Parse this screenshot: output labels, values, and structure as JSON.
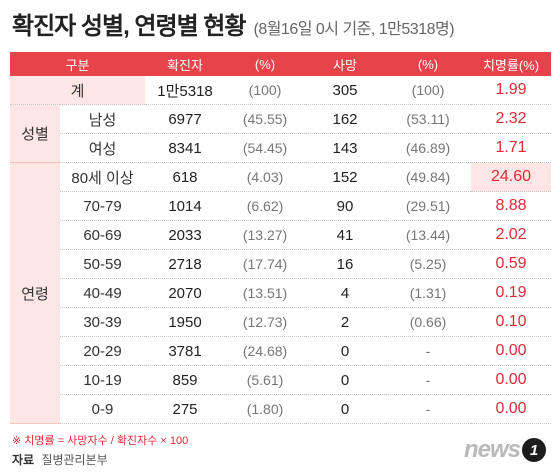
{
  "header": {
    "title": "확진자 성별, 연령별 현황",
    "subtitle": "(8월16일 0시 기준, 1만5318명)"
  },
  "columns": [
    "구분",
    "확진자",
    "(%)",
    "사망",
    "(%)",
    "치명률(%)"
  ],
  "colors": {
    "accent": "#e8434b",
    "shade": "#fde6e4",
    "rate_text": "#e02b35"
  },
  "total": {
    "label": "계",
    "confirmed": "1만5318",
    "confirmed_pct": "(100)",
    "deaths": "305",
    "deaths_pct": "(100)",
    "rate": "1.99"
  },
  "sex": {
    "group_label": "성별",
    "rows": [
      {
        "label": "남성",
        "confirmed": "6977",
        "confirmed_pct": "(45.55)",
        "deaths": "162",
        "deaths_pct": "(53.11)",
        "rate": "2.32"
      },
      {
        "label": "여성",
        "confirmed": "8341",
        "confirmed_pct": "(54.45)",
        "deaths": "143",
        "deaths_pct": "(46.89)",
        "rate": "1.71"
      }
    ]
  },
  "age": {
    "group_label": "연령",
    "rows": [
      {
        "label": "80세 이상",
        "confirmed": "618",
        "confirmed_pct": "(4.03)",
        "deaths": "152",
        "deaths_pct": "(49.84)",
        "rate": "24.60"
      },
      {
        "label": "70-79",
        "confirmed": "1014",
        "confirmed_pct": "(6.62)",
        "deaths": "90",
        "deaths_pct": "(29.51)",
        "rate": "8.88"
      },
      {
        "label": "60-69",
        "confirmed": "2033",
        "confirmed_pct": "(13.27)",
        "deaths": "41",
        "deaths_pct": "(13.44)",
        "rate": "2.02"
      },
      {
        "label": "50-59",
        "confirmed": "2718",
        "confirmed_pct": "(17.74)",
        "deaths": "16",
        "deaths_pct": "(5.25)",
        "rate": "0.59"
      },
      {
        "label": "40-49",
        "confirmed": "2070",
        "confirmed_pct": "(13.51)",
        "deaths": "4",
        "deaths_pct": "(1.31)",
        "rate": "0.19"
      },
      {
        "label": "30-39",
        "confirmed": "1950",
        "confirmed_pct": "(12.73)",
        "deaths": "2",
        "deaths_pct": "(0.66)",
        "rate": "0.10"
      },
      {
        "label": "20-29",
        "confirmed": "3781",
        "confirmed_pct": "(24.68)",
        "deaths": "0",
        "deaths_pct": "-",
        "rate": "0.00"
      },
      {
        "label": "10-19",
        "confirmed": "859",
        "confirmed_pct": "(5.61)",
        "deaths": "0",
        "deaths_pct": "-",
        "rate": "0.00"
      },
      {
        "label": "0-9",
        "confirmed": "275",
        "confirmed_pct": "(1.80)",
        "deaths": "0",
        "deaths_pct": "-",
        "rate": "0.00"
      }
    ]
  },
  "footnote": "※ 치명률 = 사망자수 / 확진자수 × 100",
  "source": {
    "label": "자료",
    "value": "질병관리본부"
  },
  "logo": {
    "text": "news",
    "mark": "1"
  }
}
